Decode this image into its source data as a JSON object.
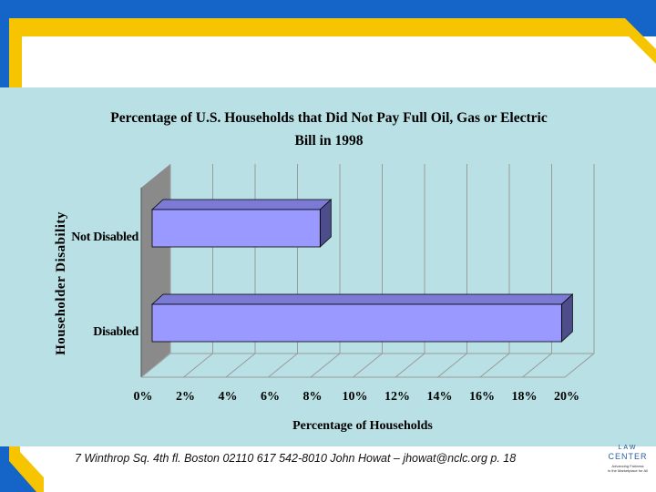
{
  "colors": {
    "frame_blue": "#1565c8",
    "frame_yellow": "#f6c400",
    "panel_bg": "#b9e0e4",
    "bar_front": "#9999ff",
    "bar_top": "#7b7bd6",
    "bar_side": "#4d4d8c",
    "wall": "#8a8a8a"
  },
  "chart_data": {
    "type": "bar",
    "orientation": "horizontal",
    "title": "Percentage of U.S. Households that Did Not Pay Full Oil, Gas or Electric Bill in 1998",
    "title_lines": [
      "Percentage of U.S. Households that Did Not Pay Full Oil, Gas or Electric",
      "Bill in 1998"
    ],
    "xlabel": "Percentage of Households",
    "ylabel": "Householder Disability",
    "categories": [
      "Not Disabled",
      "Disabled"
    ],
    "values": [
      8.1,
      19.5
    ],
    "xlim": [
      0,
      20
    ],
    "xticks": [
      "0%",
      "2%",
      "4%",
      "6%",
      "8%",
      "10%",
      "12%",
      "14%",
      "16%",
      "18%",
      "20%"
    ],
    "grid": true,
    "three_d": true
  },
  "footer": {
    "text": "7 Winthrop Sq. 4th fl. Boston 02110  617 542-8010  John Howat – jhowat@nclc.org  p. 18"
  },
  "logo": {
    "line1": "LAW",
    "line2": "CENTER",
    "line3": "Advancing Fairness",
    "line4": "in the Marketplace for All"
  }
}
